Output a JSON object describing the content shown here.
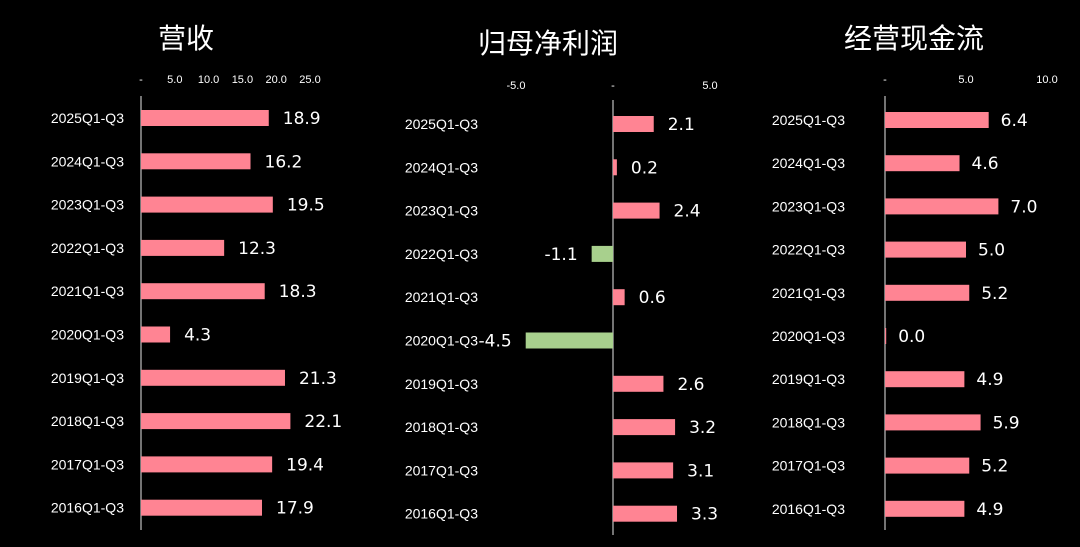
{
  "chart_data": [
    {
      "type": "bar",
      "orientation": "horizontal",
      "title": "营收",
      "categories": [
        "2025Q1-Q3",
        "2024Q1-Q3",
        "2023Q1-Q3",
        "2022Q1-Q3",
        "2021Q1-Q3",
        "2020Q1-Q3",
        "2019Q1-Q3",
        "2018Q1-Q3",
        "2017Q1-Q3",
        "2016Q1-Q3"
      ],
      "values": [
        18.9,
        16.2,
        19.5,
        12.3,
        18.3,
        4.3,
        21.3,
        22.1,
        19.4,
        17.9
      ],
      "value_labels": [
        "18.9",
        "16.2",
        "19.5",
        "12.3",
        "18.3",
        "4.3",
        "21.3",
        "22.1",
        "19.4",
        "17.9"
      ],
      "xlim": [
        0,
        25
      ],
      "ticks": [
        0,
        5,
        10,
        15,
        20,
        25
      ],
      "tick_labels": [
        "-",
        "5.0",
        "10.0",
        "15.0",
        "20.0",
        "25.0"
      ],
      "grid": false,
      "legend": "none"
    },
    {
      "type": "bar",
      "orientation": "horizontal",
      "title": "归母净利润",
      "categories": [
        "2025Q1-Q3",
        "2024Q1-Q3",
        "2023Q1-Q3",
        "2022Q1-Q3",
        "2021Q1-Q3",
        "2020Q1-Q3",
        "2019Q1-Q3",
        "2018Q1-Q3",
        "2017Q1-Q3",
        "2016Q1-Q3"
      ],
      "values": [
        2.1,
        0.2,
        2.4,
        -1.1,
        0.6,
        -4.5,
        2.6,
        3.2,
        3.1,
        3.3
      ],
      "value_labels": [
        "2.1",
        "0.2",
        "2.4",
        "-1.1",
        "0.6",
        "-4.5",
        "2.6",
        "3.2",
        "3.1",
        "3.3"
      ],
      "xlim": [
        -5,
        5
      ],
      "ticks": [
        -5,
        0,
        5
      ],
      "tick_labels": [
        "-5.0",
        "-",
        "5.0"
      ],
      "grid": false,
      "legend": "none"
    },
    {
      "type": "bar",
      "orientation": "horizontal",
      "title": "经营现金流",
      "categories": [
        "2025Q1-Q3",
        "2024Q1-Q3",
        "2023Q1-Q3",
        "2022Q1-Q3",
        "2021Q1-Q3",
        "2020Q1-Q3",
        "2019Q1-Q3",
        "2018Q1-Q3",
        "2017Q1-Q3",
        "2016Q1-Q3"
      ],
      "values": [
        6.4,
        4.6,
        7.0,
        5.0,
        5.2,
        0.0,
        4.9,
        5.9,
        5.2,
        4.9
      ],
      "value_labels": [
        "6.4",
        "4.6",
        "7.0",
        "5.0",
        "5.2",
        "0.0",
        "4.9",
        "5.9",
        "5.2",
        "4.9"
      ],
      "xlim": [
        0,
        10
      ],
      "ticks": [
        0,
        5,
        10
      ],
      "tick_labels": [
        "-",
        "5.0",
        "10.0"
      ],
      "grid": false,
      "legend": "none"
    }
  ],
  "colors": {
    "background": "#000000",
    "positive_bar": "#ff8493",
    "negative_bar": "#a8d08d",
    "axis": "#9a9a9a",
    "text": "#ffffff"
  }
}
